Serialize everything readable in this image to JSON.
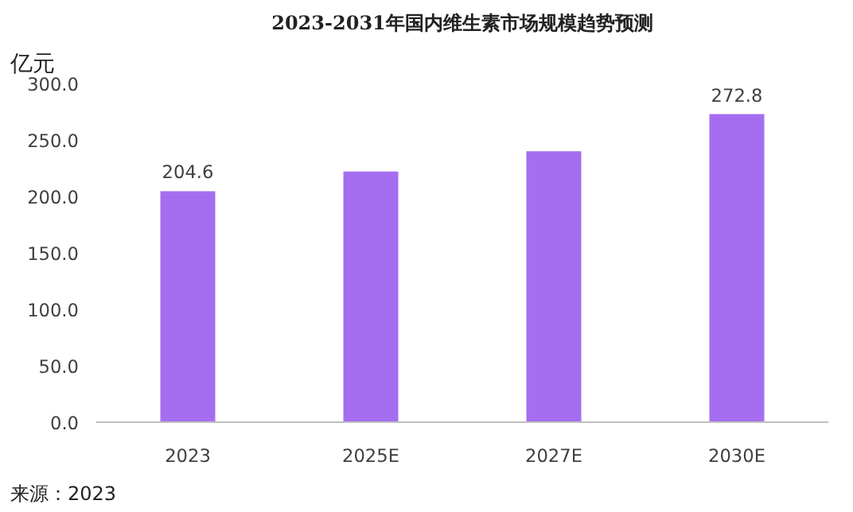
{
  "chart_data": {
    "type": "bar",
    "title": "2023-2031年国内维生素市场规模趋势预测",
    "ylabel": "亿元",
    "categories": [
      "2023",
      "2025E",
      "2027E",
      "2030E"
    ],
    "values": [
      204.6,
      222,
      240,
      272.8
    ],
    "value_labels": [
      "204.6",
      null,
      null,
      "272.8"
    ],
    "color": "#a56ef0",
    "ylim": [
      0,
      300
    ],
    "yticks": [
      {
        "value": 0,
        "label": "0.0"
      },
      {
        "value": 50,
        "label": "50.0"
      },
      {
        "value": 100,
        "label": "100.0"
      },
      {
        "value": 150,
        "label": "150.0"
      },
      {
        "value": 200,
        "label": "200.0"
      },
      {
        "value": 250,
        "label": "250.0"
      },
      {
        "value": 300,
        "label": "300.0"
      }
    ],
    "grid": false,
    "annotations": [
      "来源：2023"
    ]
  }
}
